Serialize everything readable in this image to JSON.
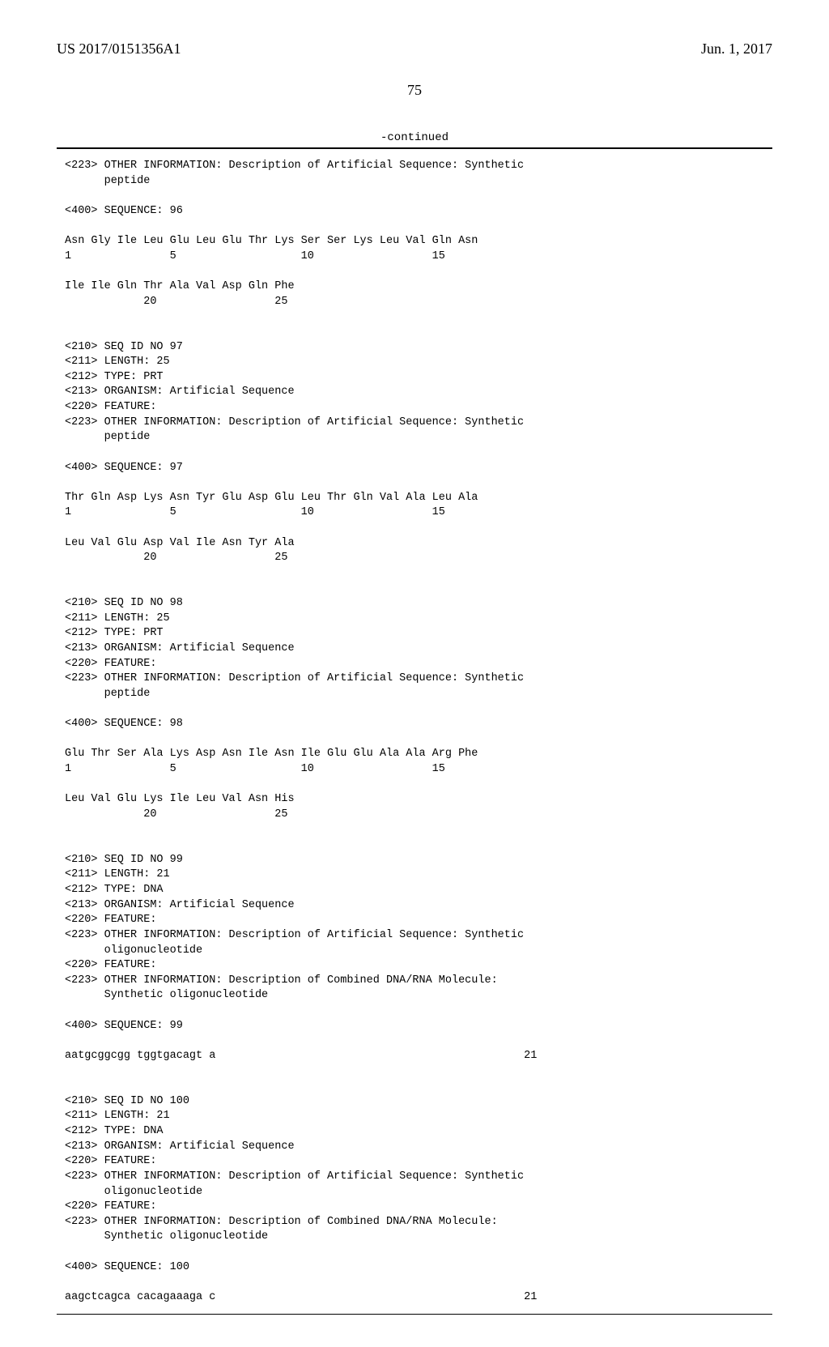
{
  "header": {
    "pub_number": "US 2017/0151356A1",
    "pub_date": "Jun. 1, 2017"
  },
  "page_number": "75",
  "continued_label": "-continued",
  "sequence_text": "<223> OTHER INFORMATION: Description of Artificial Sequence: Synthetic\n      peptide\n\n<400> SEQUENCE: 96\n\nAsn Gly Ile Leu Glu Leu Glu Thr Lys Ser Ser Lys Leu Val Gln Asn\n1               5                   10                  15\n\nIle Ile Gln Thr Ala Val Asp Gln Phe\n            20                  25\n\n\n<210> SEQ ID NO 97\n<211> LENGTH: 25\n<212> TYPE: PRT\n<213> ORGANISM: Artificial Sequence\n<220> FEATURE:\n<223> OTHER INFORMATION: Description of Artificial Sequence: Synthetic\n      peptide\n\n<400> SEQUENCE: 97\n\nThr Gln Asp Lys Asn Tyr Glu Asp Glu Leu Thr Gln Val Ala Leu Ala\n1               5                   10                  15\n\nLeu Val Glu Asp Val Ile Asn Tyr Ala\n            20                  25\n\n\n<210> SEQ ID NO 98\n<211> LENGTH: 25\n<212> TYPE: PRT\n<213> ORGANISM: Artificial Sequence\n<220> FEATURE:\n<223> OTHER INFORMATION: Description of Artificial Sequence: Synthetic\n      peptide\n\n<400> SEQUENCE: 98\n\nGlu Thr Ser Ala Lys Asp Asn Ile Asn Ile Glu Glu Ala Ala Arg Phe\n1               5                   10                  15\n\nLeu Val Glu Lys Ile Leu Val Asn His\n            20                  25\n\n\n<210> SEQ ID NO 99\n<211> LENGTH: 21\n<212> TYPE: DNA\n<213> ORGANISM: Artificial Sequence\n<220> FEATURE:\n<223> OTHER INFORMATION: Description of Artificial Sequence: Synthetic\n      oligonucleotide\n<220> FEATURE:\n<223> OTHER INFORMATION: Description of Combined DNA/RNA Molecule:\n      Synthetic oligonucleotide\n\n<400> SEQUENCE: 99\n\naatgcggcgg tggtgacagt a                                               21\n\n\n<210> SEQ ID NO 100\n<211> LENGTH: 21\n<212> TYPE: DNA\n<213> ORGANISM: Artificial Sequence\n<220> FEATURE:\n<223> OTHER INFORMATION: Description of Artificial Sequence: Synthetic\n      oligonucleotide\n<220> FEATURE:\n<223> OTHER INFORMATION: Description of Combined DNA/RNA Molecule:\n      Synthetic oligonucleotide\n\n<400> SEQUENCE: 100\n\naagctcagca cacagaaaga c                                               21"
}
